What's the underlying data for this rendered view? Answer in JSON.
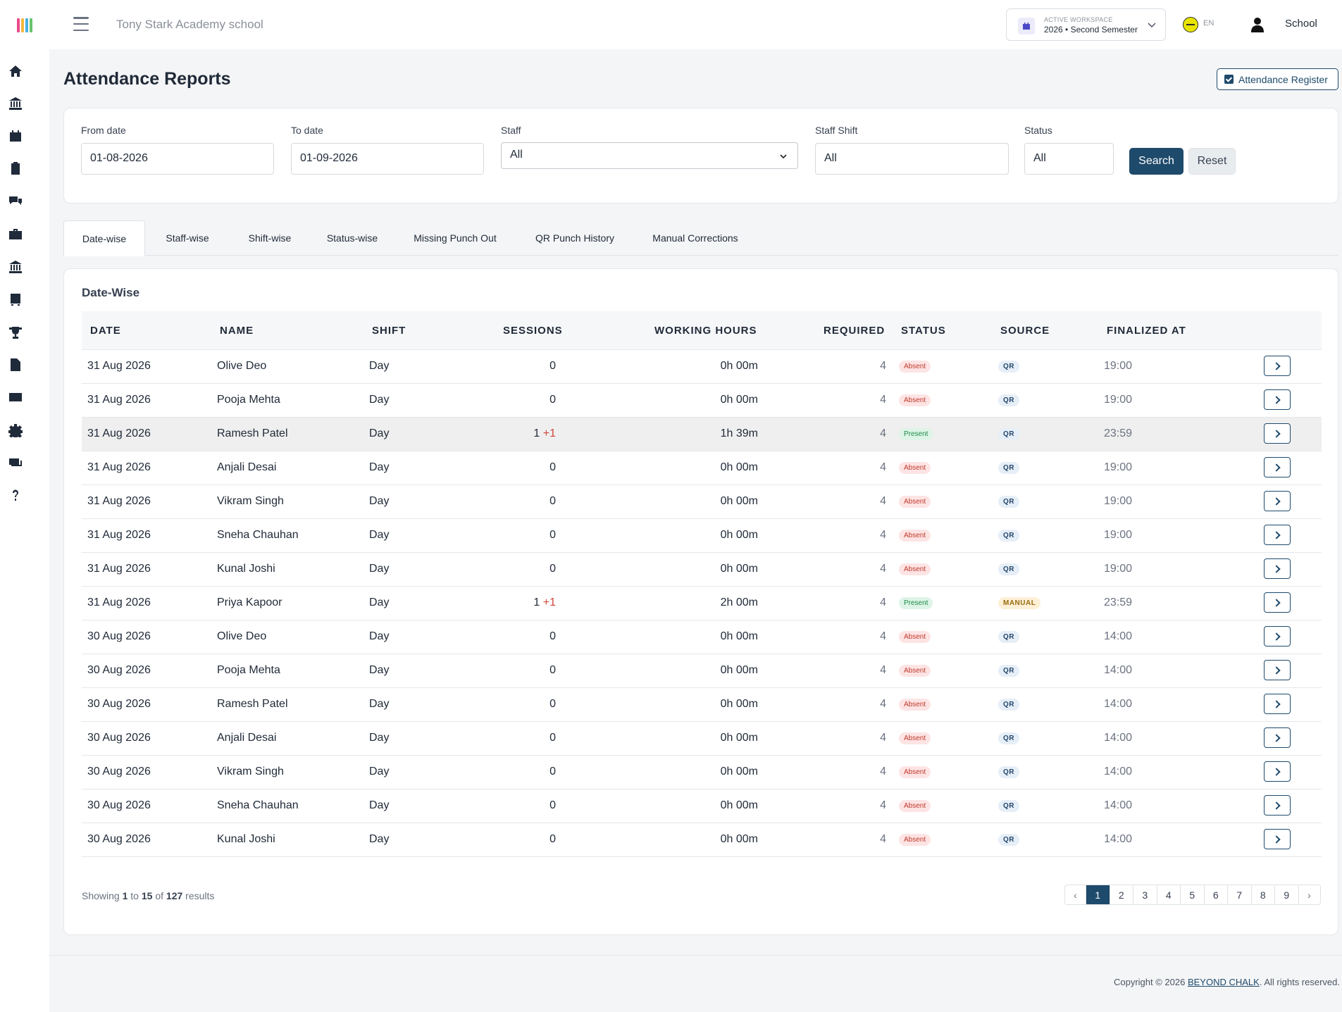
{
  "header": {
    "school_name": "Tony Stark Academy school",
    "workspace_label": "ACTIVE WORKSPACE",
    "workspace_value": "2026 • Second Semester",
    "language": "EN",
    "user_name": "School"
  },
  "sidebar": {
    "icons": [
      "home-icon",
      "bank-icon",
      "calendar-icon",
      "clipboard-icon",
      "chat-icon",
      "briefcase-icon",
      "institution-icon",
      "bus-icon",
      "trophy-icon",
      "document-icon",
      "card-icon",
      "gear-icon",
      "money-icon",
      "help-icon"
    ]
  },
  "page": {
    "title": "Attendance Reports",
    "register_button": "Attendance Register"
  },
  "filters": {
    "from_label": "From date",
    "from_value": "01-08-2026",
    "to_label": "To date",
    "to_value": "01-09-2026",
    "staff_label": "Staff",
    "staff_value": "All",
    "shift_label": "Staff Shift",
    "shift_value": "All",
    "status_label": "Status",
    "status_value": "All",
    "search_button": "Search",
    "reset_button": "Reset"
  },
  "tabs": [
    {
      "label": "Date-wise"
    },
    {
      "label": "Staff-wise"
    },
    {
      "label": "Shift-wise"
    },
    {
      "label": "Status-wise"
    },
    {
      "label": "Missing Punch Out"
    },
    {
      "label": "QR Punch History"
    },
    {
      "label": "Manual Corrections"
    }
  ],
  "table": {
    "title": "Date-Wise",
    "headers": {
      "date": "DATE",
      "name": "NAME",
      "shift": "SHIFT",
      "sessions": "SESSIONS",
      "working_hours": "WORKING HOURS",
      "required": "REQUIRED",
      "status": "STATUS",
      "source": "SOURCE",
      "finalized_at": "FINALIZED AT"
    },
    "rows": [
      {
        "date": "31 Aug 2026",
        "name": "Olive Deo",
        "shift": "Day",
        "sessions": "0",
        "extra": "",
        "hours": "0h 00m",
        "required": "4",
        "status": "Absent",
        "source": "QR",
        "finalized": "19:00"
      },
      {
        "date": "31 Aug 2026",
        "name": "Pooja Mehta",
        "shift": "Day",
        "sessions": "0",
        "extra": "",
        "hours": "0h 00m",
        "required": "4",
        "status": "Absent",
        "source": "QR",
        "finalized": "19:00"
      },
      {
        "date": "31 Aug 2026",
        "name": "Ramesh Patel",
        "shift": "Day",
        "sessions": "1",
        "extra": "+1",
        "hours": "1h 39m",
        "required": "4",
        "status": "Present",
        "source": "QR",
        "finalized": "23:59"
      },
      {
        "date": "31 Aug 2026",
        "name": "Anjali Desai",
        "shift": "Day",
        "sessions": "0",
        "extra": "",
        "hours": "0h 00m",
        "required": "4",
        "status": "Absent",
        "source": "QR",
        "finalized": "19:00"
      },
      {
        "date": "31 Aug 2026",
        "name": "Vikram Singh",
        "shift": "Day",
        "sessions": "0",
        "extra": "",
        "hours": "0h 00m",
        "required": "4",
        "status": "Absent",
        "source": "QR",
        "finalized": "19:00"
      },
      {
        "date": "31 Aug 2026",
        "name": "Sneha Chauhan",
        "shift": "Day",
        "sessions": "0",
        "extra": "",
        "hours": "0h 00m",
        "required": "4",
        "status": "Absent",
        "source": "QR",
        "finalized": "19:00"
      },
      {
        "date": "31 Aug 2026",
        "name": "Kunal Joshi",
        "shift": "Day",
        "sessions": "0",
        "extra": "",
        "hours": "0h 00m",
        "required": "4",
        "status": "Absent",
        "source": "QR",
        "finalized": "19:00"
      },
      {
        "date": "31 Aug 2026",
        "name": "Priya Kapoor",
        "shift": "Day",
        "sessions": "1",
        "extra": "+1",
        "hours": "2h 00m",
        "required": "4",
        "status": "Present",
        "source": "MANUAL",
        "finalized": "23:59"
      },
      {
        "date": "30 Aug 2026",
        "name": "Olive Deo",
        "shift": "Day",
        "sessions": "0",
        "extra": "",
        "hours": "0h 00m",
        "required": "4",
        "status": "Absent",
        "source": "QR",
        "finalized": "14:00"
      },
      {
        "date": "30 Aug 2026",
        "name": "Pooja Mehta",
        "shift": "Day",
        "sessions": "0",
        "extra": "",
        "hours": "0h 00m",
        "required": "4",
        "status": "Absent",
        "source": "QR",
        "finalized": "14:00"
      },
      {
        "date": "30 Aug 2026",
        "name": "Ramesh Patel",
        "shift": "Day",
        "sessions": "0",
        "extra": "",
        "hours": "0h 00m",
        "required": "4",
        "status": "Absent",
        "source": "QR",
        "finalized": "14:00"
      },
      {
        "date": "30 Aug 2026",
        "name": "Anjali Desai",
        "shift": "Day",
        "sessions": "0",
        "extra": "",
        "hours": "0h 00m",
        "required": "4",
        "status": "Absent",
        "source": "QR",
        "finalized": "14:00"
      },
      {
        "date": "30 Aug 2026",
        "name": "Vikram Singh",
        "shift": "Day",
        "sessions": "0",
        "extra": "",
        "hours": "0h 00m",
        "required": "4",
        "status": "Absent",
        "source": "QR",
        "finalized": "14:00"
      },
      {
        "date": "30 Aug 2026",
        "name": "Sneha Chauhan",
        "shift": "Day",
        "sessions": "0",
        "extra": "",
        "hours": "0h 00m",
        "required": "4",
        "status": "Absent",
        "source": "QR",
        "finalized": "14:00"
      },
      {
        "date": "30 Aug 2026",
        "name": "Kunal Joshi",
        "shift": "Day",
        "sessions": "0",
        "extra": "",
        "hours": "0h 00m",
        "required": "4",
        "status": "Absent",
        "source": "QR",
        "finalized": "14:00"
      }
    ]
  },
  "pagination": {
    "showing_prefix": "Showing",
    "from": "1",
    "to_word": "to",
    "to": "15",
    "of_word": "of",
    "total": "127",
    "suffix": "results",
    "prev": "‹",
    "next": "›",
    "pages": [
      "1",
      "2",
      "3",
      "4",
      "5",
      "6",
      "7",
      "8",
      "9"
    ],
    "current": "1"
  },
  "footer": {
    "prefix": "Copyright © 2026",
    "brand": "BEYOND CHALK",
    "suffix": ". All rights reserved."
  },
  "colors": {
    "primary": "#1e4a6b",
    "absent_bg": "#fde4e4",
    "absent_text": "#c0392b",
    "present_bg": "#ddf4e6",
    "present_text": "#1f8a4c",
    "extra_session": "#d0463b"
  }
}
